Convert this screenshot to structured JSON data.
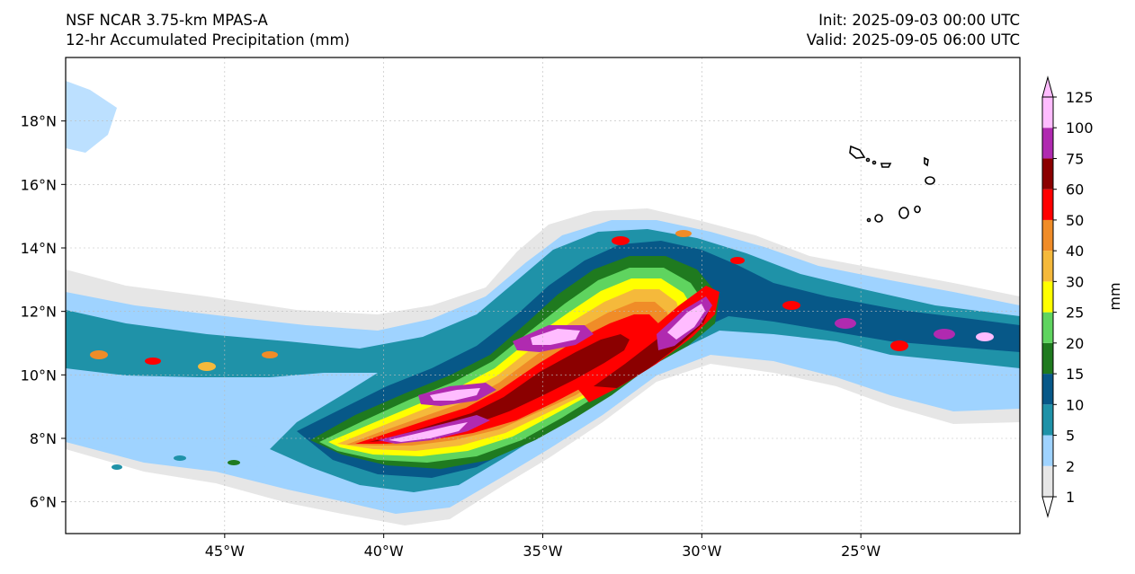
{
  "header": {
    "model_title": "NSF NCAR 3.75-km MPAS-A",
    "field_title": "12-hr Accumulated Precipitation (mm)",
    "init_label": "Init: 2025-09-03 00:00 UTC",
    "valid_label": "Valid: 2025-09-05 06:00 UTC"
  },
  "map": {
    "lon_range": [
      -50,
      -20
    ],
    "lat_range": [
      5,
      20
    ],
    "lon_ticks": [
      {
        "value": -45,
        "label": "45°W"
      },
      {
        "value": -40,
        "label": "40°W"
      },
      {
        "value": -35,
        "label": "35°W"
      },
      {
        "value": -30,
        "label": "30°W"
      },
      {
        "value": -25,
        "label": "25°W"
      }
    ],
    "lat_ticks": [
      {
        "value": 6,
        "label": "6°N"
      },
      {
        "value": 8,
        "label": "8°N"
      },
      {
        "value": 10,
        "label": "10°N"
      },
      {
        "value": 12,
        "label": "12°N"
      },
      {
        "value": 14,
        "label": "14°N"
      },
      {
        "value": 16,
        "label": "16°N"
      },
      {
        "value": 18,
        "label": "18°N"
      }
    ],
    "gridlines": true,
    "islands": "Cape Verde Islands"
  },
  "colorbar": {
    "unit_label": "mm",
    "levels": [
      "1",
      "2",
      "5",
      "10",
      "15",
      "20",
      "25",
      "30",
      "40",
      "50",
      "60",
      "75",
      "100",
      "125"
    ],
    "colors": [
      "#e6e6e6",
      "#9fd3ff",
      "#1f92a8",
      "#075888",
      "#1f7a1f",
      "#5fd45f",
      "#ffff00",
      "#f5b93b",
      "#f08c28",
      "#ff0000",
      "#8b0000",
      "#b02ab0",
      "#ffbcff"
    ],
    "over_color": "#ffbcff",
    "under_color": "#ffffff"
  }
}
